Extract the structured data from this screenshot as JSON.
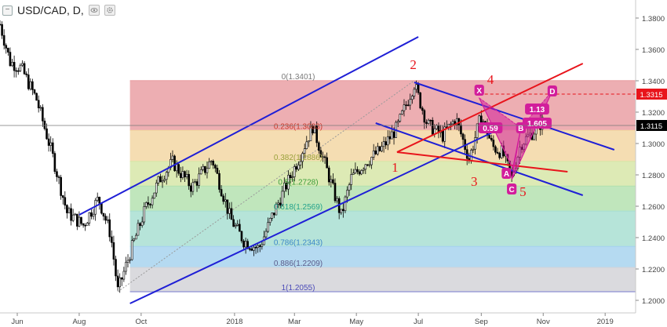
{
  "header": {
    "symbol": "USD/CAD, D,",
    "collapse_glyph": "−",
    "icons": [
      "eye-icon",
      "settings-icon"
    ]
  },
  "colors": {
    "candle": "#000000",
    "channel": "#1f1fd6",
    "triangle": "#e8141b",
    "pattern": "#d21e9b",
    "wave_label": "#e8141b",
    "price_tag_current": "#000000",
    "price_tag_target": "#e8141b",
    "fib_bands": [
      "#eaa0a4",
      "#f3d7a4",
      "#d7e6a8",
      "#b5e2b0",
      "#a9dfd2",
      "#a8d4ef",
      "#d3d3d8",
      "#8e8fd3"
    ]
  },
  "chart_data": {
    "type": "candlestick",
    "symbol": "USD/CAD",
    "timeframe": "D",
    "x": {
      "start": "2017-05-15",
      "end": "2019-01-31",
      "ticks": [
        "Jun",
        "Aug",
        "Oct",
        "2018",
        "Mar",
        "May",
        "Jul",
        "Sep",
        "Nov",
        "2019"
      ]
    },
    "y": {
      "range": [
        1.195,
        1.39
      ],
      "ticks": [
        "1.3800",
        "1.3600",
        "1.3400",
        "1.3200",
        "1.3000",
        "1.2800",
        "1.2600",
        "1.2400",
        "1.2200",
        "1.2000"
      ],
      "scale": "linear",
      "grid": false
    },
    "price_path": [
      [
        "2017-05-15",
        1.376
      ],
      [
        "2017-05-25",
        1.352
      ],
      [
        "2017-06-05",
        1.348
      ],
      [
        "2017-06-20",
        1.328
      ],
      [
        "2017-07-05",
        1.294
      ],
      [
        "2017-07-20",
        1.256
      ],
      [
        "2017-08-05",
        1.248
      ],
      [
        "2017-08-20",
        1.265
      ],
      [
        "2017-09-01",
        1.242
      ],
      [
        "2017-09-08",
        1.206
      ],
      [
        "2017-09-20",
        1.23
      ],
      [
        "2017-10-05",
        1.258
      ],
      [
        "2017-10-20",
        1.278
      ],
      [
        "2017-11-01",
        1.288
      ],
      [
        "2017-11-20",
        1.272
      ],
      [
        "2017-12-10",
        1.29
      ],
      [
        "2017-12-28",
        1.252
      ],
      [
        "2018-01-10",
        1.238
      ],
      [
        "2018-01-25",
        1.233
      ],
      [
        "2018-02-08",
        1.255
      ],
      [
        "2018-02-20",
        1.272
      ],
      [
        "2018-03-05",
        1.29
      ],
      [
        "2018-03-19",
        1.311
      ],
      [
        "2018-04-01",
        1.285
      ],
      [
        "2018-04-16",
        1.254
      ],
      [
        "2018-04-26",
        1.278
      ],
      [
        "2018-05-10",
        1.288
      ],
      [
        "2018-05-25",
        1.296
      ],
      [
        "2018-06-10",
        1.31
      ],
      [
        "2018-06-27",
        1.338
      ],
      [
        "2018-07-10",
        1.312
      ],
      [
        "2018-07-25",
        1.305
      ],
      [
        "2018-08-07",
        1.316
      ],
      [
        "2018-08-20",
        1.29
      ],
      [
        "2018-09-01",
        1.318
      ],
      [
        "2018-09-12",
        1.298
      ],
      [
        "2018-09-22",
        1.294
      ],
      [
        "2018-10-01",
        1.278
      ],
      [
        "2018-10-10",
        1.3
      ],
      [
        "2018-10-20",
        1.306
      ],
      [
        "2018-10-31",
        1.314
      ]
    ],
    "last_price": "1.3115",
    "target_price": "1.3315",
    "fibonacci": {
      "levels": [
        {
          "ratio": 0,
          "price": 1.3401,
          "label": "0(1.3401)"
        },
        {
          "ratio": 0.236,
          "price": 1.3083,
          "label": "0.236(1.3083)"
        },
        {
          "ratio": 0.382,
          "price": 1.2886,
          "label": "0.382(1.2886)"
        },
        {
          "ratio": 0.5,
          "price": 1.2728,
          "label": "0.5(1.2728)"
        },
        {
          "ratio": 0.618,
          "price": 1.2569,
          "label": "0.618(1.2569)"
        },
        {
          "ratio": 0.786,
          "price": 1.2343,
          "label": "0.786(1.2343)"
        },
        {
          "ratio": 0.886,
          "price": 1.2209,
          "label": "0.886(1.2209)"
        },
        {
          "ratio": 1,
          "price": 1.2055,
          "label": "1(1.2055)"
        }
      ],
      "start": "2017-09-20",
      "end": "2019-01-31",
      "anchor_low": [
        "2017-09-08",
        1.2055
      ],
      "anchor_high": [
        "2018-06-27",
        1.3401
      ]
    },
    "lines": [
      {
        "name": "channel-upper",
        "kind": "channel",
        "from": [
          "2017-08-01",
          1.2545
        ],
        "to": [
          "2018-07-01",
          1.368
        ]
      },
      {
        "name": "channel-lower",
        "kind": "channel",
        "from": [
          "2017-09-20",
          1.198
        ],
        "to": [
          "2018-09-15",
          1.308
        ]
      },
      {
        "name": "down-channel-upper",
        "kind": "channel",
        "from": [
          "2018-06-27",
          1.339
        ],
        "to": [
          "2019-01-10",
          1.296
        ]
      },
      {
        "name": "down-channel-lower",
        "kind": "channel",
        "from": [
          "2018-05-20",
          1.313
        ],
        "to": [
          "2018-12-10",
          1.267
        ]
      },
      {
        "name": "triangle-upper",
        "kind": "triangle",
        "from": [
          "2018-06-10",
          1.2945
        ],
        "to": [
          "2018-12-10",
          1.351
        ]
      },
      {
        "name": "triangle-lower",
        "kind": "triangle",
        "from": [
          "2018-06-10",
          1.2945
        ],
        "to": [
          "2018-11-25",
          1.282
        ]
      },
      {
        "name": "target-line",
        "kind": "dashed",
        "from": [
          "2018-08-30",
          1.3315
        ],
        "to": [
          "2019-01-31",
          1.3315
        ]
      }
    ],
    "harmonic_pattern": {
      "points": [
        {
          "label": "X",
          "x": "2018-08-30",
          "y": 1.329
        },
        {
          "label": "A",
          "x": "2018-10-02",
          "y": 1.284
        },
        {
          "label": "B",
          "x": "2018-10-10",
          "y": 1.31
        },
        {
          "label": "C",
          "x": "2018-10-01",
          "y": 1.277
        },
        {
          "label": "D",
          "x": "2018-11-10",
          "y": 1.3335
        }
      ],
      "ratios": [
        {
          "label": "0.59",
          "x": "2018-09-10",
          "y": 1.31
        },
        {
          "label": "1.13",
          "x": "2018-10-26",
          "y": 1.322
        },
        {
          "label": "1.605",
          "x": "2018-10-26",
          "y": 1.313
        }
      ]
    },
    "wave_labels": [
      {
        "label": "1",
        "x": "2018-06-08",
        "y": 1.282
      },
      {
        "label": "2",
        "x": "2018-06-26",
        "y": 1.3475
      },
      {
        "label": "3",
        "x": "2018-08-25",
        "y": 1.273
      },
      {
        "label": "4",
        "x": "2018-09-10",
        "y": 1.338
      },
      {
        "label": "5",
        "x": "2018-10-12",
        "y": 1.2665
      }
    ]
  }
}
